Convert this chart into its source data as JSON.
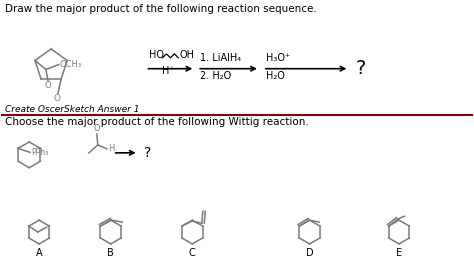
{
  "title1": "Draw the major product of the following reaction sequence.",
  "title2": "Choose the major product of the following Wittig reaction.",
  "create_text": "Create OscerSketch Answer 1",
  "bg_color": "#ffffff",
  "text_color": "#000000",
  "gray_color": "#7a7a7a",
  "divider_color": "#8B0000",
  "font_size_title": 7.5,
  "font_size_label": 7,
  "font_size_create": 6.5,
  "labels": [
    "A",
    "B",
    "C",
    "D",
    "E"
  ]
}
